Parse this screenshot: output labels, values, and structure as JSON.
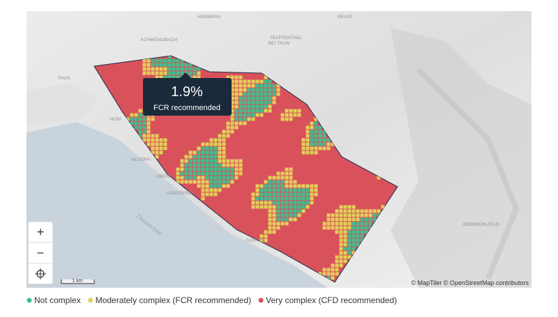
{
  "map": {
    "place_labels": [
      "HOMBERG",
      "REUST",
      "SCHWENDIBACH",
      "TEUFFENTHAL",
      "BEI THUN",
      "THUN",
      "HÜNI",
      "HILTERFI",
      "OBERH",
      "LÄNGENSCH",
      "Thunersee",
      "GUNTEN",
      "ELBERG",
      "OBERBÜHLFELD"
    ],
    "tooltip": {
      "value": "1.9%",
      "label": "FCR recommended"
    },
    "controls": {
      "zoom_in": "+",
      "zoom_out": "−"
    },
    "scale": "1 km",
    "attribution": "© MapTiler © OpenStreetMap contributors"
  },
  "legend": [
    {
      "label": "Not complex",
      "color": "#3fbf8f"
    },
    {
      "label": "Moderately complex (FCR recommended)",
      "color": "#e3d15a"
    },
    {
      "label": "Very complex (CFD recommended)",
      "color": "#d8515b"
    }
  ]
}
